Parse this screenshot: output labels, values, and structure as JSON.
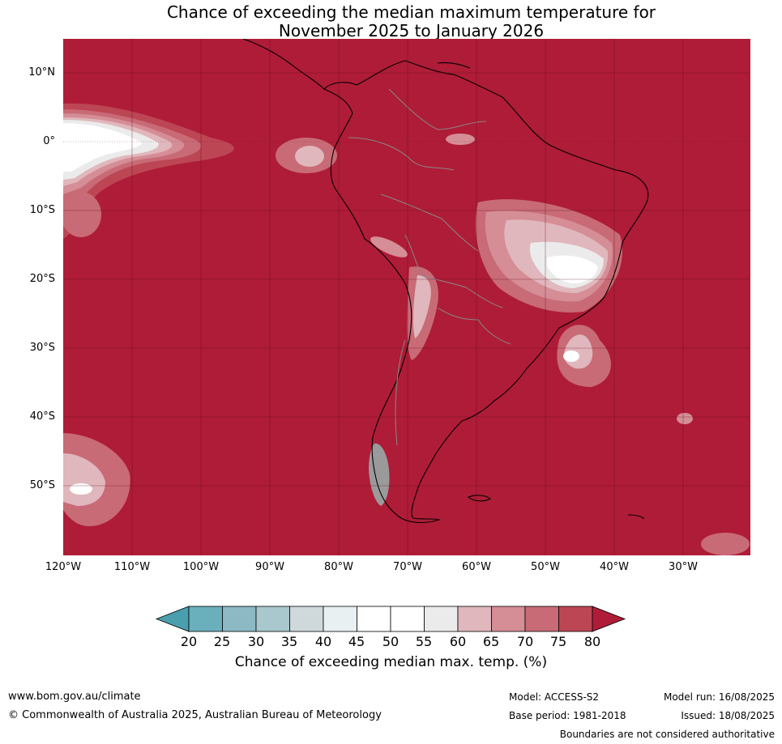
{
  "title_line1": "Chance of exceeding the median maximum temperature for",
  "title_line2": "November 2025 to January 2026",
  "lat_labels": [
    "10°N",
    "0°",
    "10°S",
    "20°S",
    "30°S",
    "40°S",
    "50°S"
  ],
  "lon_labels": [
    "120°W",
    "110°W",
    "100°W",
    "90°W",
    "80°W",
    "70°W",
    "60°W",
    "50°W",
    "40°W",
    "30°W"
  ],
  "colorbar": {
    "ticks": [
      "20",
      "25",
      "30",
      "35",
      "40",
      "45",
      "50",
      "55",
      "60",
      "65",
      "70",
      "75",
      "80"
    ],
    "colors": [
      "#4a9fae",
      "#6aafbc",
      "#8db9c5",
      "#a9c8cd",
      "#cfd8db",
      "#e8f0f2",
      "#ffffff",
      "#ffffff",
      "#ebebeb",
      "#e0b7bc",
      "#d58d96",
      "#c86b76",
      "#bd4654",
      "#af1c37"
    ],
    "label": "Chance of exceeding median max. temp. (%)"
  },
  "footer": {
    "website": "www.bom.gov.au/climate",
    "copyright": "© Commonwealth of Australia 2025, Australian Bureau of Meteorology",
    "model": "Model: ACCESS-S2",
    "base_period": "Base period: 1981-2018",
    "model_run": "Model run: 16/08/2025",
    "issued": "Issued: 18/08/2025",
    "disclaimer": "Boundaries are not considered authoritative"
  },
  "map_colors": {
    "background": "#af1c37",
    "level_75": "#bd4654",
    "level_70": "#c86b76",
    "level_65": "#d58d96",
    "level_60": "#e0b7bc",
    "level_55": "#ebebeb",
    "level_50": "#ffffff",
    "coast": "#000000",
    "border": "#888888",
    "grid": "#5a0a1a"
  }
}
